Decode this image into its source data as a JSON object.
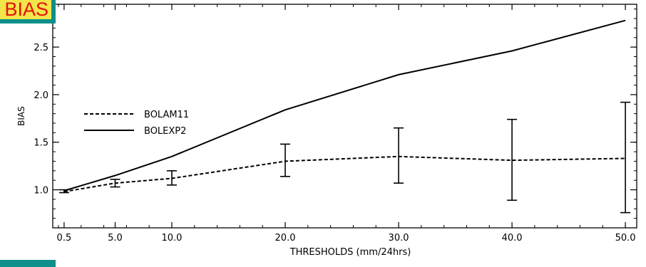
{
  "badge": {
    "text": "BIAS"
  },
  "chart_data": {
    "type": "line",
    "title": "",
    "xlabel": "THRESHOLDS (mm/24hrs)",
    "ylabel": "BIAS",
    "categories": [
      "0.5",
      "5.0",
      "10.0",
      "20.0",
      "30.0",
      "40.0",
      "50.0"
    ],
    "x": [
      0.5,
      5.0,
      10.0,
      20.0,
      30.0,
      40.0,
      50.0
    ],
    "xlim": [
      -0.5,
      51.0
    ],
    "ylim": [
      0.6,
      2.95
    ],
    "yticks": [
      "1.0",
      "1.5",
      "2.0",
      "2.5"
    ],
    "ytick_values": [
      1.0,
      1.5,
      2.0,
      2.5
    ],
    "grid": false,
    "legend": "left",
    "series": [
      {
        "name": "BOLAM11",
        "style": "dashed",
        "values": [
          0.98,
          1.07,
          1.12,
          1.3,
          1.35,
          1.31,
          1.33
        ],
        "error_low": [
          0.97,
          1.03,
          1.05,
          1.14,
          1.07,
          0.89,
          0.76
        ],
        "error_high": [
          1.0,
          1.11,
          1.2,
          1.48,
          1.65,
          1.74,
          1.92
        ]
      },
      {
        "name": "BOLEXP2",
        "style": "solid",
        "values": [
          0.99,
          1.15,
          1.35,
          1.84,
          2.21,
          2.46,
          2.78
        ]
      }
    ]
  }
}
